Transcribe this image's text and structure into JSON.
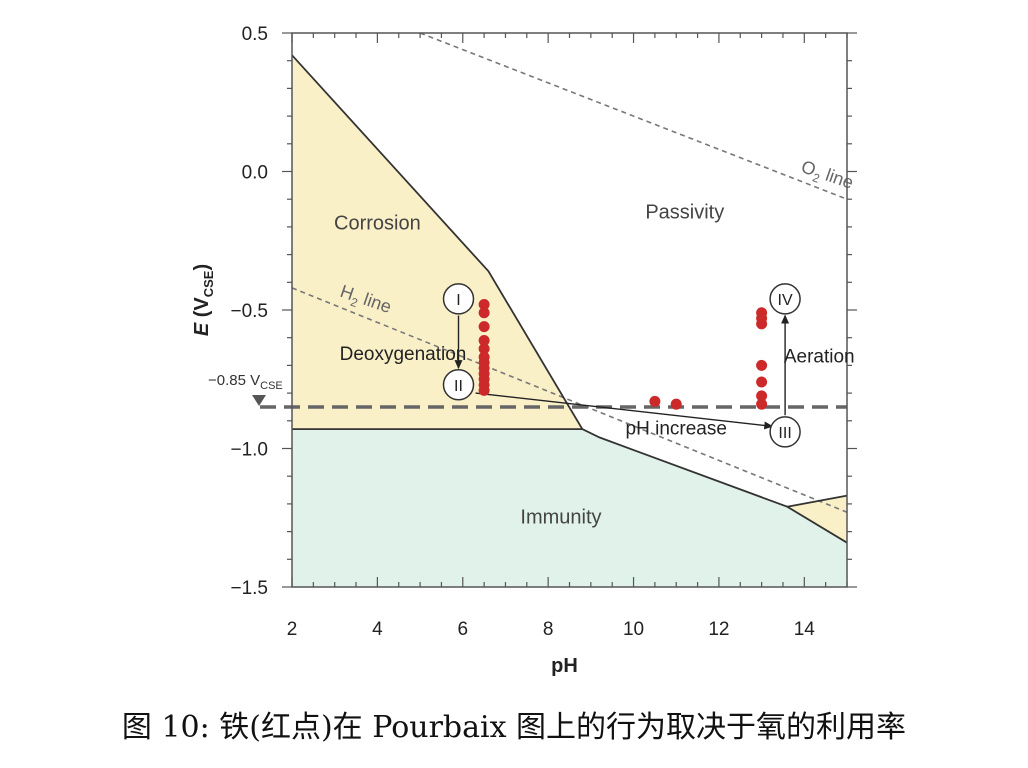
{
  "chart_data": {
    "type": "area",
    "xlabel": "pH",
    "ylabel_main": "E (V",
    "ylabel_sub": "CSE",
    "ylabel_close": ")",
    "xlim": [
      2,
      15
    ],
    "ylim": [
      -1.5,
      0.5
    ],
    "xticks": [
      2,
      4,
      6,
      8,
      10,
      12,
      14
    ],
    "yticks": [
      0.5,
      0.0,
      -0.5,
      -1.0,
      -1.5
    ],
    "ytick_labels": [
      "0.5",
      "0.0",
      "−0.5",
      "−1.0",
      "−1.5"
    ],
    "grid": false,
    "regions": [
      {
        "name": "Corrosion",
        "color": "#faf0c8",
        "polygon": [
          [
            2,
            0.42
          ],
          [
            6.6,
            -0.36
          ],
          [
            8.8,
            -0.93
          ],
          [
            2,
            -0.93
          ]
        ]
      },
      {
        "name": "Immunity",
        "color": "#e0f2ea",
        "polygon": [
          [
            2,
            -0.93
          ],
          [
            8.8,
            -0.93
          ],
          [
            9.2,
            -0.96
          ],
          [
            13.6,
            -1.21
          ],
          [
            15,
            -1.34
          ],
          [
            15,
            -1.5
          ],
          [
            2,
            -1.5
          ]
        ]
      },
      {
        "name": "Passivity",
        "color": "#ffffff",
        "polygon": []
      },
      {
        "name": "",
        "color": "#faf0c8",
        "polygon": [
          [
            13.6,
            -1.21
          ],
          [
            15,
            -1.17
          ],
          [
            15,
            -1.34
          ]
        ]
      }
    ],
    "region_labels": [
      {
        "text": "Corrosion",
        "x": 4.0,
        "y": -0.21
      },
      {
        "text": "Passivity",
        "x": 11.2,
        "y": -0.17
      },
      {
        "text": "Immunity",
        "x": 8.3,
        "y": -1.27
      }
    ],
    "boundaries": [
      [
        [
          2,
          0.42
        ],
        [
          6.6,
          -0.36
        ],
        [
          8.8,
          -0.93
        ],
        [
          9.2,
          -0.96
        ],
        [
          13.6,
          -1.21
        ],
        [
          15,
          -1.34
        ]
      ],
      [
        [
          2,
          -0.93
        ],
        [
          8.8,
          -0.93
        ]
      ],
      [
        [
          13.6,
          -1.21
        ],
        [
          15,
          -1.17
        ]
      ]
    ],
    "reference_lines": [
      {
        "name": "O",
        "subscript": "2",
        "suffix": " line",
        "points": [
          [
            5.0,
            0.5
          ],
          [
            15,
            -0.1
          ]
        ],
        "label_x": 13.9,
        "label_y": 0.0,
        "label_angle": 19
      },
      {
        "name": "H",
        "subscript": "2",
        "suffix": " line",
        "points": [
          [
            2,
            -0.42
          ],
          [
            15,
            -1.23
          ]
        ],
        "label_x": 3.1,
        "label_y": -0.45,
        "label_angle": 19
      }
    ],
    "threshold": {
      "value": -0.85,
      "label_prefix": "−0.85 V",
      "label_sub": "CSE"
    },
    "points": [
      {
        "x": 6.5,
        "y": -0.48
      },
      {
        "x": 6.5,
        "y": -0.51
      },
      {
        "x": 6.5,
        "y": -0.56
      },
      {
        "x": 6.5,
        "y": -0.61
      },
      {
        "x": 6.5,
        "y": -0.64
      },
      {
        "x": 6.5,
        "y": -0.67
      },
      {
        "x": 6.5,
        "y": -0.69
      },
      {
        "x": 6.5,
        "y": -0.71
      },
      {
        "x": 6.5,
        "y": -0.73
      },
      {
        "x": 6.5,
        "y": -0.75
      },
      {
        "x": 6.5,
        "y": -0.77
      },
      {
        "x": 6.5,
        "y": -0.79
      },
      {
        "x": 10.5,
        "y": -0.83
      },
      {
        "x": 11.0,
        "y": -0.84
      },
      {
        "x": 13.0,
        "y": -0.51
      },
      {
        "x": 13.0,
        "y": -0.53
      },
      {
        "x": 13.0,
        "y": -0.55
      },
      {
        "x": 13.0,
        "y": -0.7
      },
      {
        "x": 13.0,
        "y": -0.76
      },
      {
        "x": 13.0,
        "y": -0.81
      },
      {
        "x": 13.0,
        "y": -0.84
      }
    ],
    "point_color": "#cc2a2a",
    "stages": [
      {
        "label": "I",
        "x": 5.9,
        "y": -0.46
      },
      {
        "label": "II",
        "x": 5.9,
        "y": -0.77
      },
      {
        "label": "III",
        "x": 13.55,
        "y": -0.94
      },
      {
        "label": "IV",
        "x": 13.55,
        "y": -0.46
      }
    ],
    "arrows": [
      {
        "from": [
          5.9,
          -0.52
        ],
        "to": [
          5.9,
          -0.71
        ],
        "label": ""
      },
      {
        "from": [
          6.3,
          -0.8
        ],
        "to": [
          13.25,
          -0.92
        ],
        "label": "pH increase",
        "label_x": 11.0,
        "label_y": -0.95
      },
      {
        "from": [
          13.55,
          -0.88
        ],
        "to": [
          13.55,
          -0.52
        ],
        "label": "Aeration",
        "label_x": 14.35,
        "label_y": -0.69
      }
    ],
    "annotations": [
      {
        "text": "Deoxygenation",
        "x": 4.6,
        "y": -0.68
      }
    ]
  },
  "caption": "图 10: 铁(红点)在 Pourbaix 图上的行为取决于氧的利用率"
}
